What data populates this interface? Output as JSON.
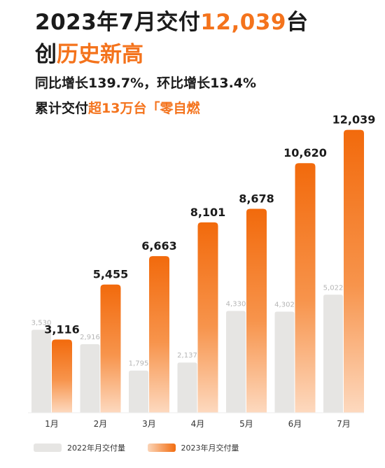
{
  "headline": {
    "part1": "2023年7月交付",
    "highlight": "12,039",
    "part2": "台",
    "line2_a": "创",
    "line2_highlight": "历史新高"
  },
  "subtitle1": "同比增长139.7%，环比增长13.4%",
  "subtitle2": {
    "part1": "累计交付",
    "highlight": "超13万台「零自燃"
  },
  "colors": {
    "accent": "#f4731c",
    "gray": "#e6e5e3"
  },
  "chart_data": {
    "type": "bar",
    "categories": [
      "1月",
      "2月",
      "3月",
      "4月",
      "5月",
      "6月",
      "7月"
    ],
    "series": [
      {
        "name": "2022年月交付量",
        "values": [
          3530,
          2916,
          1795,
          2137,
          4330,
          4302,
          5022
        ],
        "labels": [
          "3,530",
          "2,916",
          "1,795",
          "2,137",
          "4,330",
          "4,302",
          "5,022"
        ]
      },
      {
        "name": "2023年月交付量",
        "values": [
          3116,
          5455,
          6663,
          8101,
          8678,
          10620,
          12039
        ],
        "labels": [
          "3,116",
          "5,455",
          "6,663",
          "8,101",
          "8,678",
          "10,620",
          "12,039"
        ]
      }
    ],
    "ylim": [
      0,
      12800
    ],
    "grid": false,
    "legend": "bottom-left"
  }
}
